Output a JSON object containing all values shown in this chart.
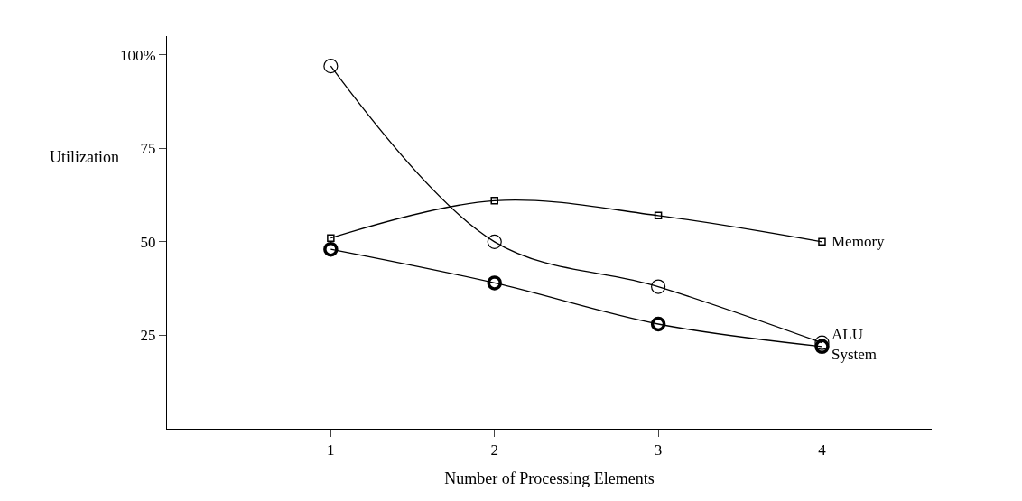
{
  "chart_data": {
    "type": "line",
    "xlabel": "Number of Processing Elements",
    "ylabel": "Utilization",
    "x": [
      1,
      2,
      3,
      4
    ],
    "xlim": [
      0,
      4.67
    ],
    "xticks": [
      1,
      2,
      3,
      4
    ],
    "ylim": [
      0,
      105
    ],
    "yticks": [
      25,
      50,
      75,
      {
        "value": 100,
        "label": "100%"
      }
    ],
    "legend": false,
    "series": [
      {
        "name": "Memory",
        "color": "#000000",
        "marker": "square",
        "values": [
          51,
          61,
          57,
          50
        ]
      },
      {
        "name": "ALU",
        "color": "#000000",
        "marker": "circle",
        "values": [
          97,
          50,
          38,
          23
        ]
      },
      {
        "name": "System",
        "color": "#000000",
        "marker": "circle-bold",
        "values": [
          48,
          39,
          28,
          22
        ]
      }
    ]
  }
}
